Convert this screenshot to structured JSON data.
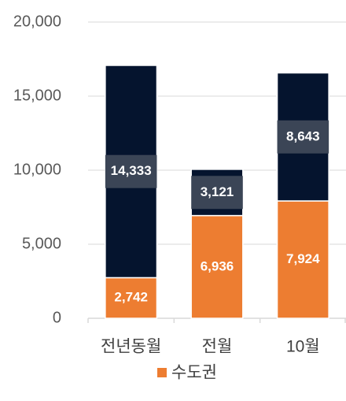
{
  "chart_data": {
    "type": "stacked-bar",
    "categories": [
      "전년동월",
      "전월",
      "10월"
    ],
    "series": [
      {
        "name": "수도권",
        "color": "#ED7D31",
        "values": [
          2742,
          6936,
          7924
        ],
        "value_labels": [
          "2,742",
          "6,936",
          "7,924"
        ]
      },
      {
        "color": "#05142E",
        "values": [
          14333,
          3121,
          8643
        ],
        "value_labels": [
          "14,333",
          "3,121",
          "8,643"
        ]
      }
    ],
    "ylim": [
      0,
      20000
    ],
    "yticks": [
      0,
      {
        "value": 5000,
        "label": "5,000"
      },
      {
        "value": 10000,
        "label": "10,000"
      },
      {
        "value": 15000,
        "label": "15,000"
      },
      {
        "value": 20000,
        "label": "20,000"
      }
    ],
    "grid": true,
    "legend": "bottom"
  }
}
